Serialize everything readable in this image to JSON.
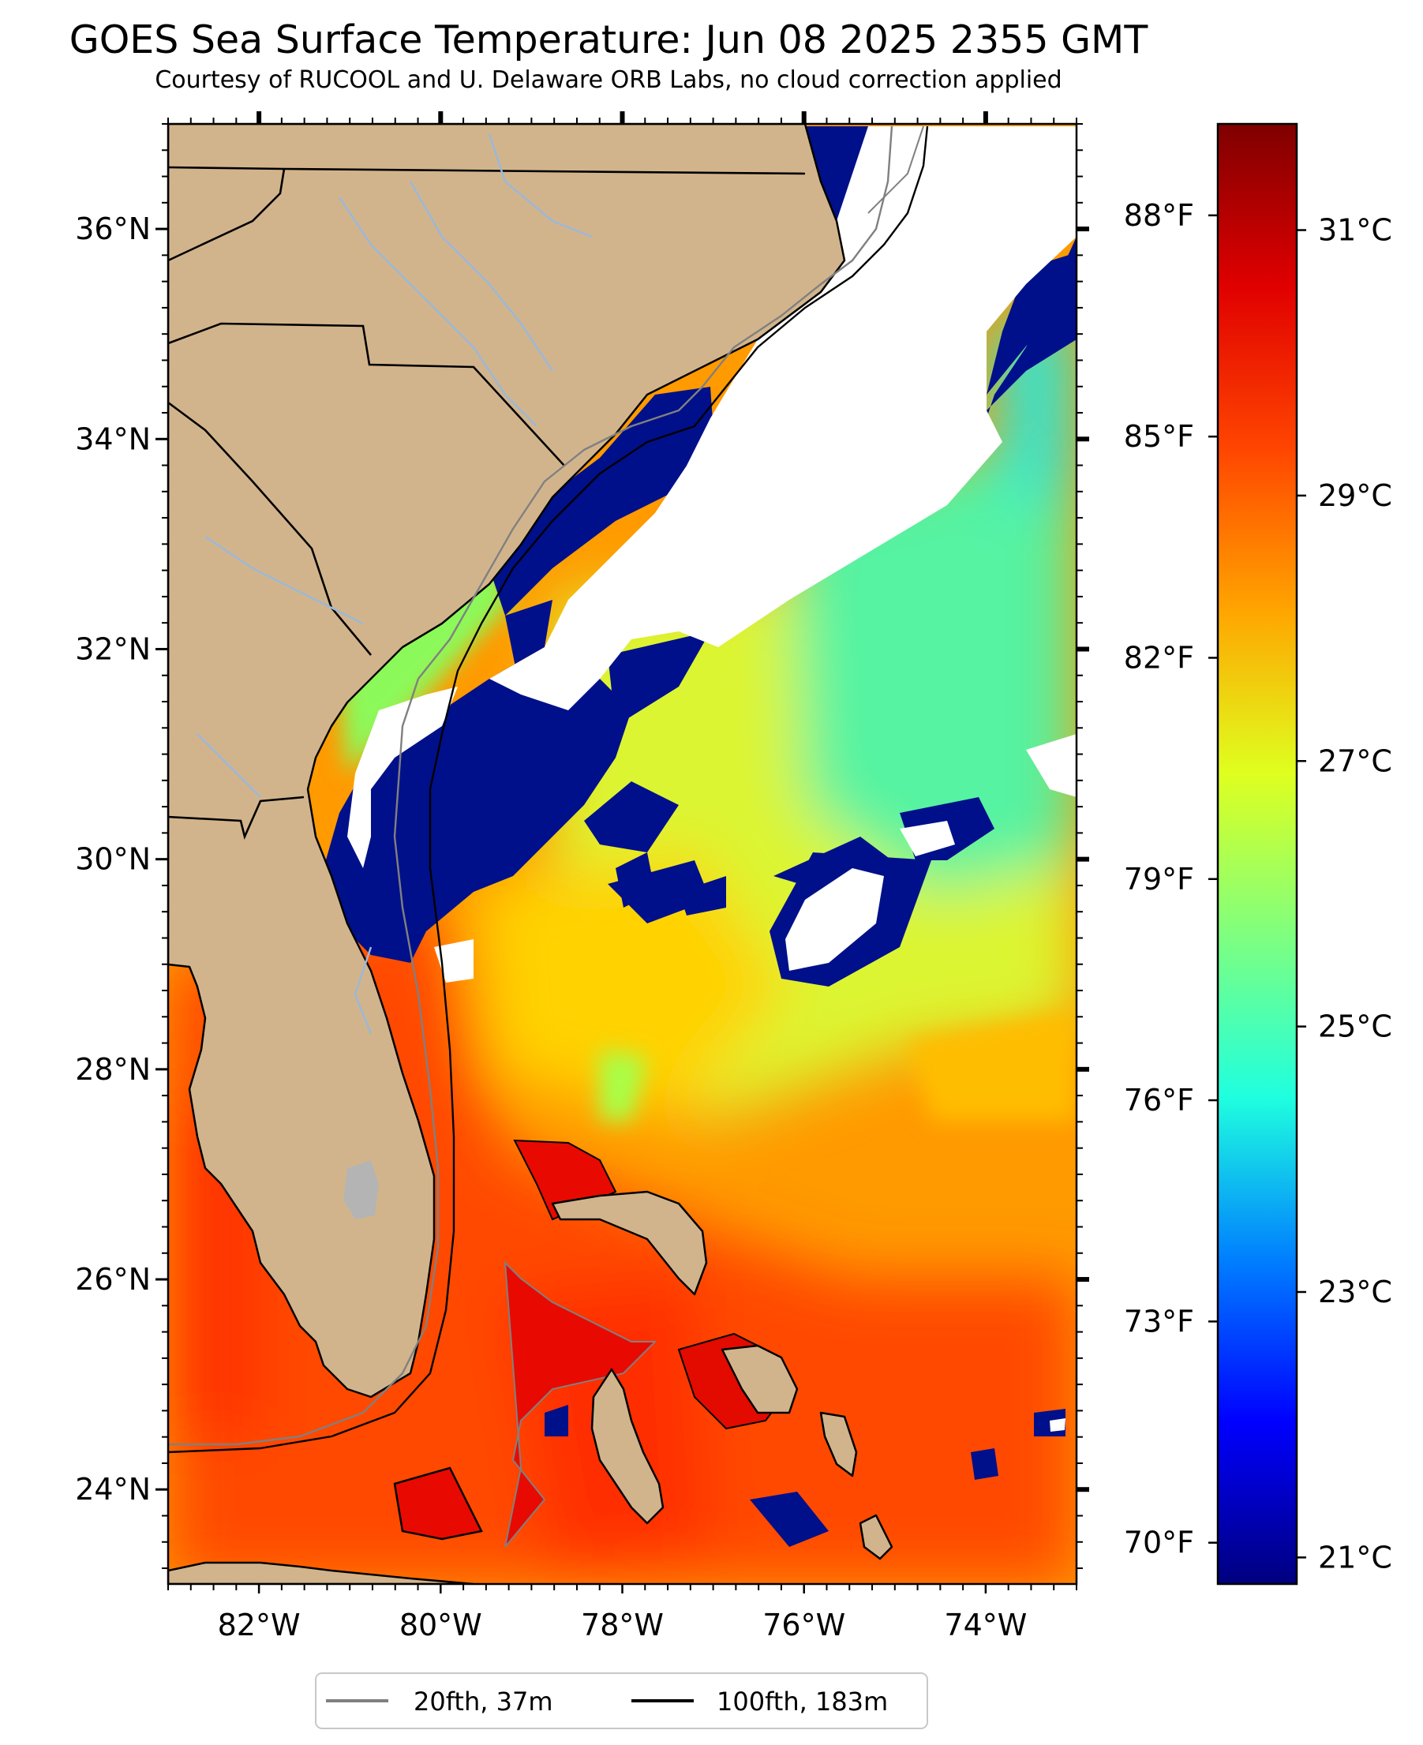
{
  "header": {
    "title": "GOES Sea Surface Temperature: Jun 08 2025 2355 GMT",
    "subtitle": "Courtesy of RUCOOL and U. Delaware ORB Labs, no cloud correction applied"
  },
  "map": {
    "lon_range": [
      -83.0,
      -73.0
    ],
    "lat_range": [
      23.1,
      37.0
    ],
    "lon_ticks": [
      {
        "value": -82,
        "label": "82°W"
      },
      {
        "value": -80,
        "label": "80°W"
      },
      {
        "value": -78,
        "label": "78°W"
      },
      {
        "value": -76,
        "label": "76°W"
      },
      {
        "value": -74,
        "label": "74°W"
      }
    ],
    "lat_ticks": [
      {
        "value": 24,
        "label": "24°N"
      },
      {
        "value": 26,
        "label": "26°N"
      },
      {
        "value": 28,
        "label": "28°N"
      },
      {
        "value": 30,
        "label": "30°N"
      },
      {
        "value": 32,
        "label": "32°N"
      },
      {
        "value": 34,
        "label": "34°N"
      },
      {
        "value": 36,
        "label": "36°N"
      }
    ],
    "colors": {
      "land": "#d2b48c",
      "cloud": "#ffffff",
      "lake": "#b4b4b4",
      "river": "#9bb8d8",
      "border": "#000000",
      "contour_20fth": "#808080",
      "contour_100fth": "#000000"
    }
  },
  "colorbar": {
    "range_c": [
      20.8,
      31.8
    ],
    "celsius_ticks": [
      {
        "value": 21,
        "label": "21°C"
      },
      {
        "value": 23,
        "label": "23°C"
      },
      {
        "value": 25,
        "label": "25°C"
      },
      {
        "value": 27,
        "label": "27°C"
      },
      {
        "value": 29,
        "label": "29°C"
      },
      {
        "value": 31,
        "label": "31°C"
      }
    ],
    "fahrenheit_ticks": [
      {
        "value": 70,
        "label": "70°F"
      },
      {
        "value": 73,
        "label": "73°F"
      },
      {
        "value": 76,
        "label": "76°F"
      },
      {
        "value": 79,
        "label": "79°F"
      },
      {
        "value": 82,
        "label": "82°F"
      },
      {
        "value": 85,
        "label": "85°F"
      },
      {
        "value": 88,
        "label": "88°F"
      }
    ],
    "colormap": [
      "#00007f",
      "#0000ff",
      "#007fff",
      "#1fffdf",
      "#7fff7f",
      "#dfff1f",
      "#ffa500",
      "#ff4500",
      "#e00000",
      "#7f0000"
    ]
  },
  "legend": {
    "items": [
      {
        "label": "20fth, 37m",
        "color": "#808080"
      },
      {
        "label": "100fth, 183m",
        "color": "#000000"
      }
    ]
  }
}
